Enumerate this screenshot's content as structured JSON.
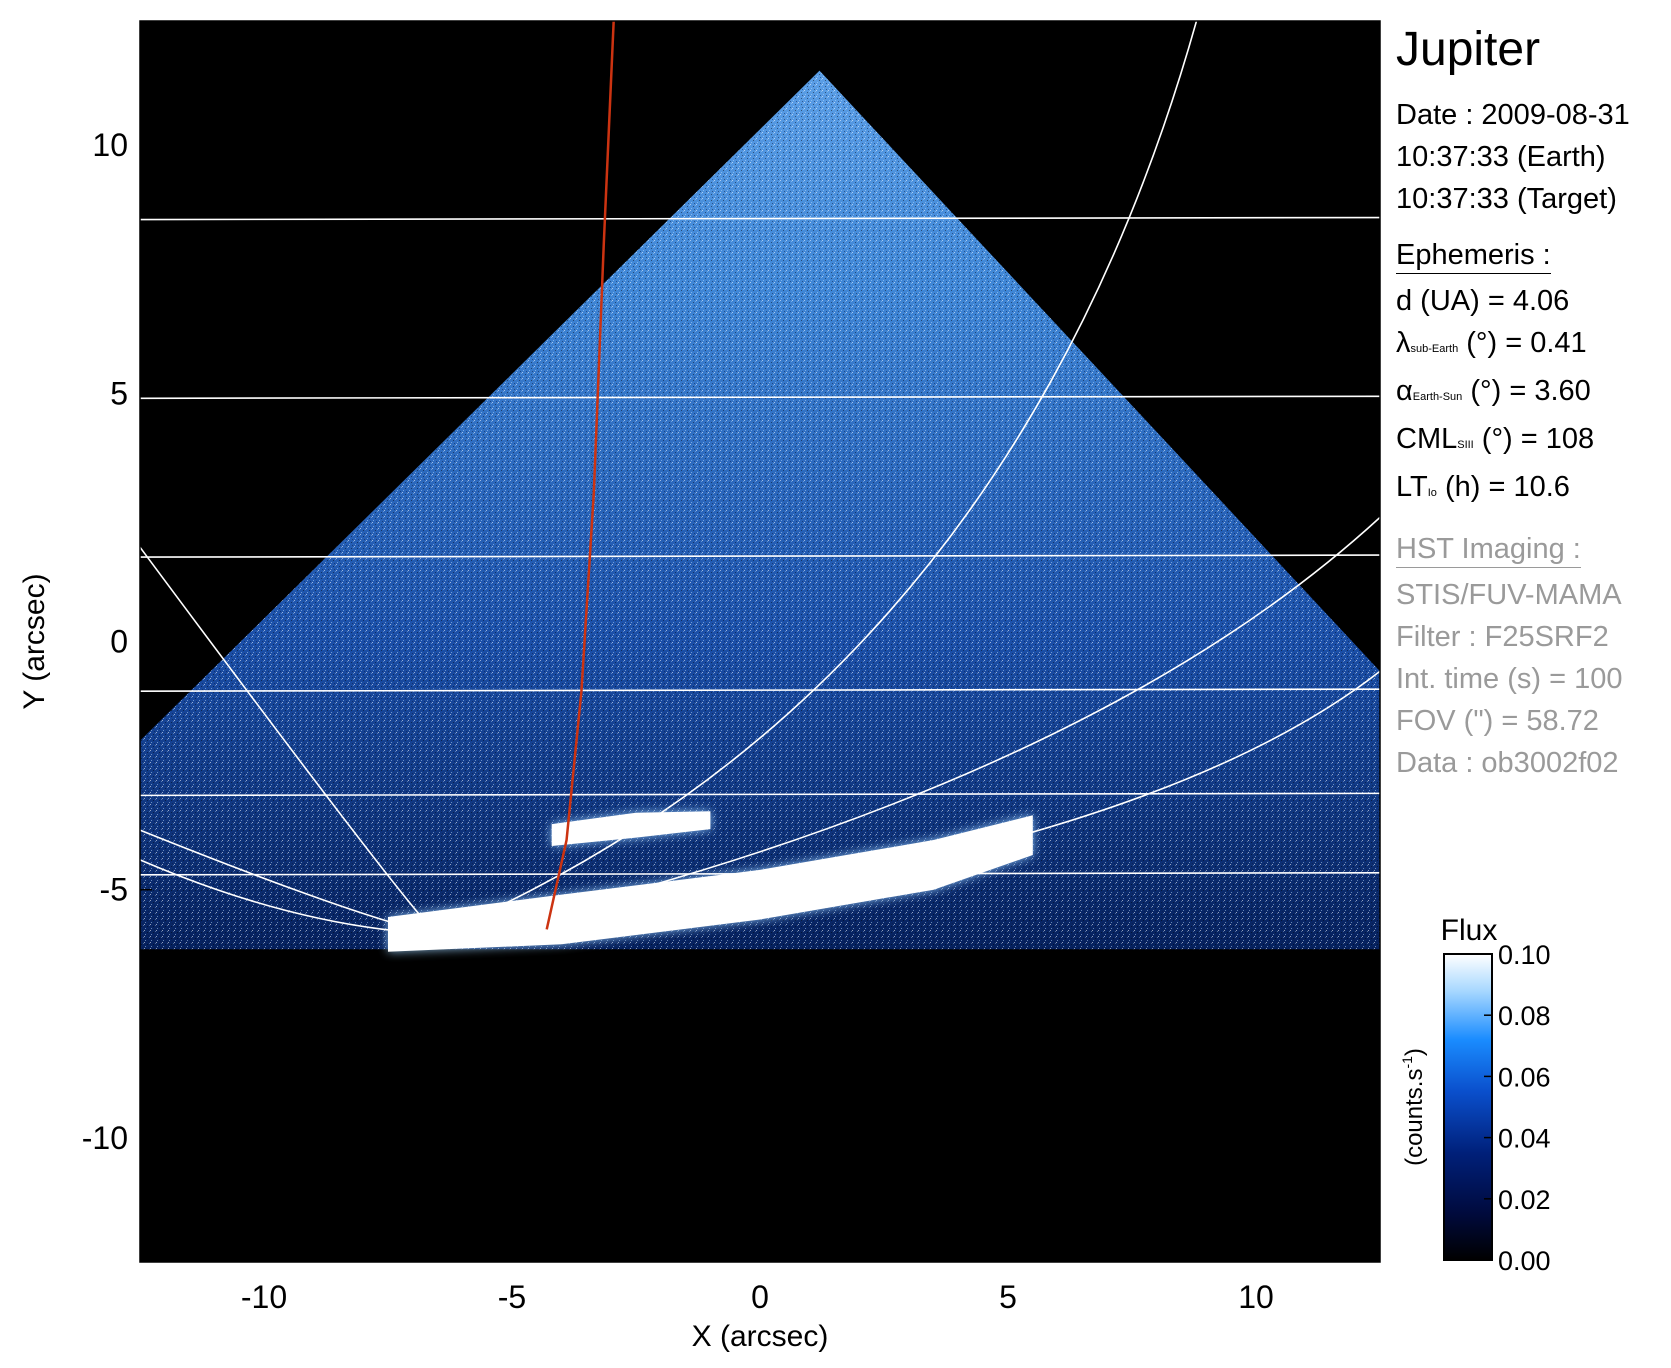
{
  "chart_data": {
    "type": "heatmap",
    "xlabel": "X (arcsec)",
    "ylabel": "Y (arcsec)",
    "xlim": [
      -12.5,
      12.5
    ],
    "ylim": [
      -12.5,
      12.5
    ],
    "xticks": [
      "-10",
      "-5",
      "0",
      "5",
      "10"
    ],
    "yticks": [
      "10",
      "5",
      "0",
      "-5",
      "-10"
    ],
    "xtick_values": [
      -10,
      -5,
      0,
      5,
      10
    ],
    "ytick_values": [
      10,
      5,
      0,
      -5,
      -10
    ],
    "data_region_apex": [
      1.2,
      11.5
    ],
    "data_region_left": [
      -12.5,
      -2.0
    ],
    "data_region_right": [
      12.5,
      -0.6
    ],
    "latitude_lines_y": [
      8.5,
      4.9,
      1.7,
      -1.0,
      -3.1,
      -4.7
    ],
    "aurora_arcs": [
      {
        "x": [
          -7.5,
          -4.0,
          0.0,
          3.5,
          5.5
        ],
        "y": [
          -5.9,
          -5.6,
          -5.1,
          -4.5,
          -3.9
        ],
        "w": [
          0.35,
          0.5,
          0.5,
          0.5,
          0.4
        ]
      },
      {
        "x": [
          -4.2,
          -2.5,
          -1.0
        ],
        "y": [
          -3.9,
          -3.7,
          -3.6
        ],
        "w": [
          0.22,
          0.25,
          0.18
        ]
      }
    ],
    "io_footpath": {
      "x": [
        -4.3,
        -3.9,
        -3.6,
        -3.35,
        -3.15,
        -2.95
      ],
      "y": [
        -5.8,
        -4.0,
        -1.0,
        3.0,
        8.0,
        12.5
      ],
      "color": "#cc3311"
    },
    "colorbar": {
      "title": "Flux",
      "unit": "(counts.s",
      "unit_exp": "-1",
      "unit_close": ")",
      "ticks": [
        "0.10",
        "0.08",
        "0.06",
        "0.04",
        "0.02",
        "0.00"
      ],
      "tick_values": [
        0.1,
        0.08,
        0.06,
        0.04,
        0.02,
        0.0
      ],
      "range": [
        0.0,
        0.1
      ],
      "colors": [
        "#000000",
        "#000a3c",
        "#00207a",
        "#0a4fcc",
        "#1a8cff",
        "#a8d8ff",
        "#ffffff"
      ]
    }
  },
  "panel": {
    "title": "Jupiter",
    "date": "Date : 2009-08-31",
    "time_earth": "10:37:33 (Earth)",
    "time_target": "10:37:33 (Target)",
    "ephemeris_header": "Ephemeris :",
    "d": "d (UA)    = 4.06",
    "lambda_sym": "λ",
    "lambda_sub": "sub-Earth",
    "lambda_rest": " (°) = 0.41",
    "alpha_sym": "α",
    "alpha_sub": "Earth-Sun",
    "alpha_rest": " (°) = 3.60",
    "cml_sym": "CML",
    "cml_sub": "SIII",
    "cml_rest": " (°) = 108",
    "lt_sym": "LT",
    "lt_sub": "Io",
    "lt_rest": " (h) = 10.6",
    "hst_header": "HST Imaging :",
    "instrument": "STIS/FUV-MAMA",
    "filter": "Filter : F25SRF2",
    "int_time": "Int. time (s) = 100",
    "fov": "FOV (\") = 58.72",
    "data_id": "Data : ob3002f02"
  }
}
